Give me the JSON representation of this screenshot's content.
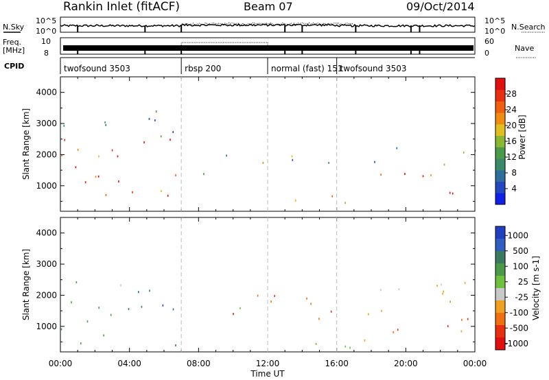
{
  "header": {
    "station": "Rankin Inlet (fitACF)",
    "beam": "Beam 07",
    "date": "09/Oct/2014"
  },
  "status_panel": {
    "nsky_label": "N.Sky",
    "nsky_ticks": [
      "10^5",
      "10^0"
    ],
    "nsearch_label": "N.Search",
    "nsearch_ticks": [
      "10^5",
      "10^0"
    ],
    "freq_label": "Freq.",
    "freq_unit": "[MHz]",
    "freq_ticks": [
      "10",
      "8"
    ],
    "nave_label": "Nave",
    "nave_ticks": [
      "60",
      "0"
    ],
    "cpid_label": "CPID",
    "cpid_segments": [
      {
        "label": "twofsound 3503",
        "start_hour": 0,
        "end_hour": 7
      },
      {
        "label": "rbsp 200",
        "start_hour": 7,
        "end_hour": 12
      },
      {
        "label": "normal (fast) 151",
        "start_hour": 12,
        "end_hour": 16
      },
      {
        "label": "twofsound 3503",
        "start_hour": 16,
        "end_hour": 24
      }
    ]
  },
  "chart_data": [
    {
      "type": "heatmap",
      "ylabel": "Slant Range [km]",
      "xlabel": "",
      "x_ticks": [
        "00:00",
        "04:00",
        "08:00",
        "12:00",
        "16:00",
        "20:00",
        "00:00"
      ],
      "y_ticks": [
        "1000",
        "2000",
        "3000",
        "4000"
      ],
      "xlim_hours": [
        0,
        24
      ],
      "ylim": [
        180,
        4500
      ],
      "colorbar": {
        "label": "Power [dB]",
        "range": [
          0,
          32
        ],
        "ticks": [
          "4",
          "8",
          "12",
          "16",
          "20",
          "24",
          "28"
        ],
        "colors": [
          "#1020e6",
          "#2448c0",
          "#2e6e9a",
          "#3a8a6a",
          "#4a9a4a",
          "#8ab830",
          "#e0c020",
          "#f08c10",
          "#f06010",
          "#e83010",
          "#e01010"
        ]
      },
      "regions": [
        {
          "t0": 0.0,
          "t1": 6.9,
          "r0": 200,
          "r1": 2600,
          "level": 0.85
        },
        {
          "t0": 0.0,
          "t1": 6.9,
          "r0": 2600,
          "r1": 3600,
          "level": 0.4
        },
        {
          "t0": 8.0,
          "t1": 11.8,
          "r0": 1300,
          "r1": 2100,
          "level": 0.5
        },
        {
          "t0": 12.0,
          "t1": 16.5,
          "r0": 1500,
          "r1": 2100,
          "level": 0.35
        },
        {
          "t0": 13.5,
          "t1": 17.0,
          "r0": 300,
          "r1": 1100,
          "level": 0.7
        },
        {
          "t0": 17.0,
          "t1": 24.0,
          "r0": 700,
          "r1": 1500,
          "level": 0.9
        },
        {
          "t0": 17.0,
          "t1": 24.0,
          "r0": 1700,
          "r1": 2300,
          "level": 0.3
        }
      ]
    },
    {
      "type": "heatmap",
      "ylabel": "Slant Range [km]",
      "xlabel": "Time UT",
      "x_ticks": [
        "00:00",
        "04:00",
        "08:00",
        "12:00",
        "16:00",
        "20:00",
        "00:00"
      ],
      "y_ticks": [
        "1000",
        "2000",
        "3000",
        "4000"
      ],
      "xlim_hours": [
        0,
        24
      ],
      "ylim": [
        180,
        4500
      ],
      "colorbar": {
        "label": "Velocity [m s-1]",
        "ticks": [
          "1000",
          "500",
          "100",
          "25",
          "-25",
          "-100",
          "-500",
          "-1000"
        ],
        "colors": [
          "#2040c0",
          "#2e5ec0",
          "#3a7a60",
          "#4a9a4a",
          "#70c040",
          "#c8c8c8",
          "#f0a020",
          "#f07010",
          "#e83010",
          "#e01010"
        ]
      },
      "regions": [
        {
          "t0": 0.0,
          "t1": 3.5,
          "r0": 200,
          "r1": 2600,
          "class": "green"
        },
        {
          "t0": 3.5,
          "t1": 6.9,
          "r0": 400,
          "r1": 2200,
          "class": "blue"
        },
        {
          "t0": 8.0,
          "t1": 11.8,
          "r0": 1300,
          "r1": 2100,
          "class": "mixed"
        },
        {
          "t0": 11.8,
          "t1": 16.0,
          "r0": 1200,
          "r1": 2400,
          "class": "orange"
        },
        {
          "t0": 13.5,
          "t1": 17.0,
          "r0": 300,
          "r1": 1100,
          "class": "grey"
        },
        {
          "t0": 17.0,
          "t1": 24.0,
          "r0": 500,
          "r1": 1500,
          "class": "orange"
        },
        {
          "t0": 17.0,
          "t1": 24.0,
          "r0": 1500,
          "r1": 2600,
          "class": "grey"
        }
      ]
    }
  ]
}
